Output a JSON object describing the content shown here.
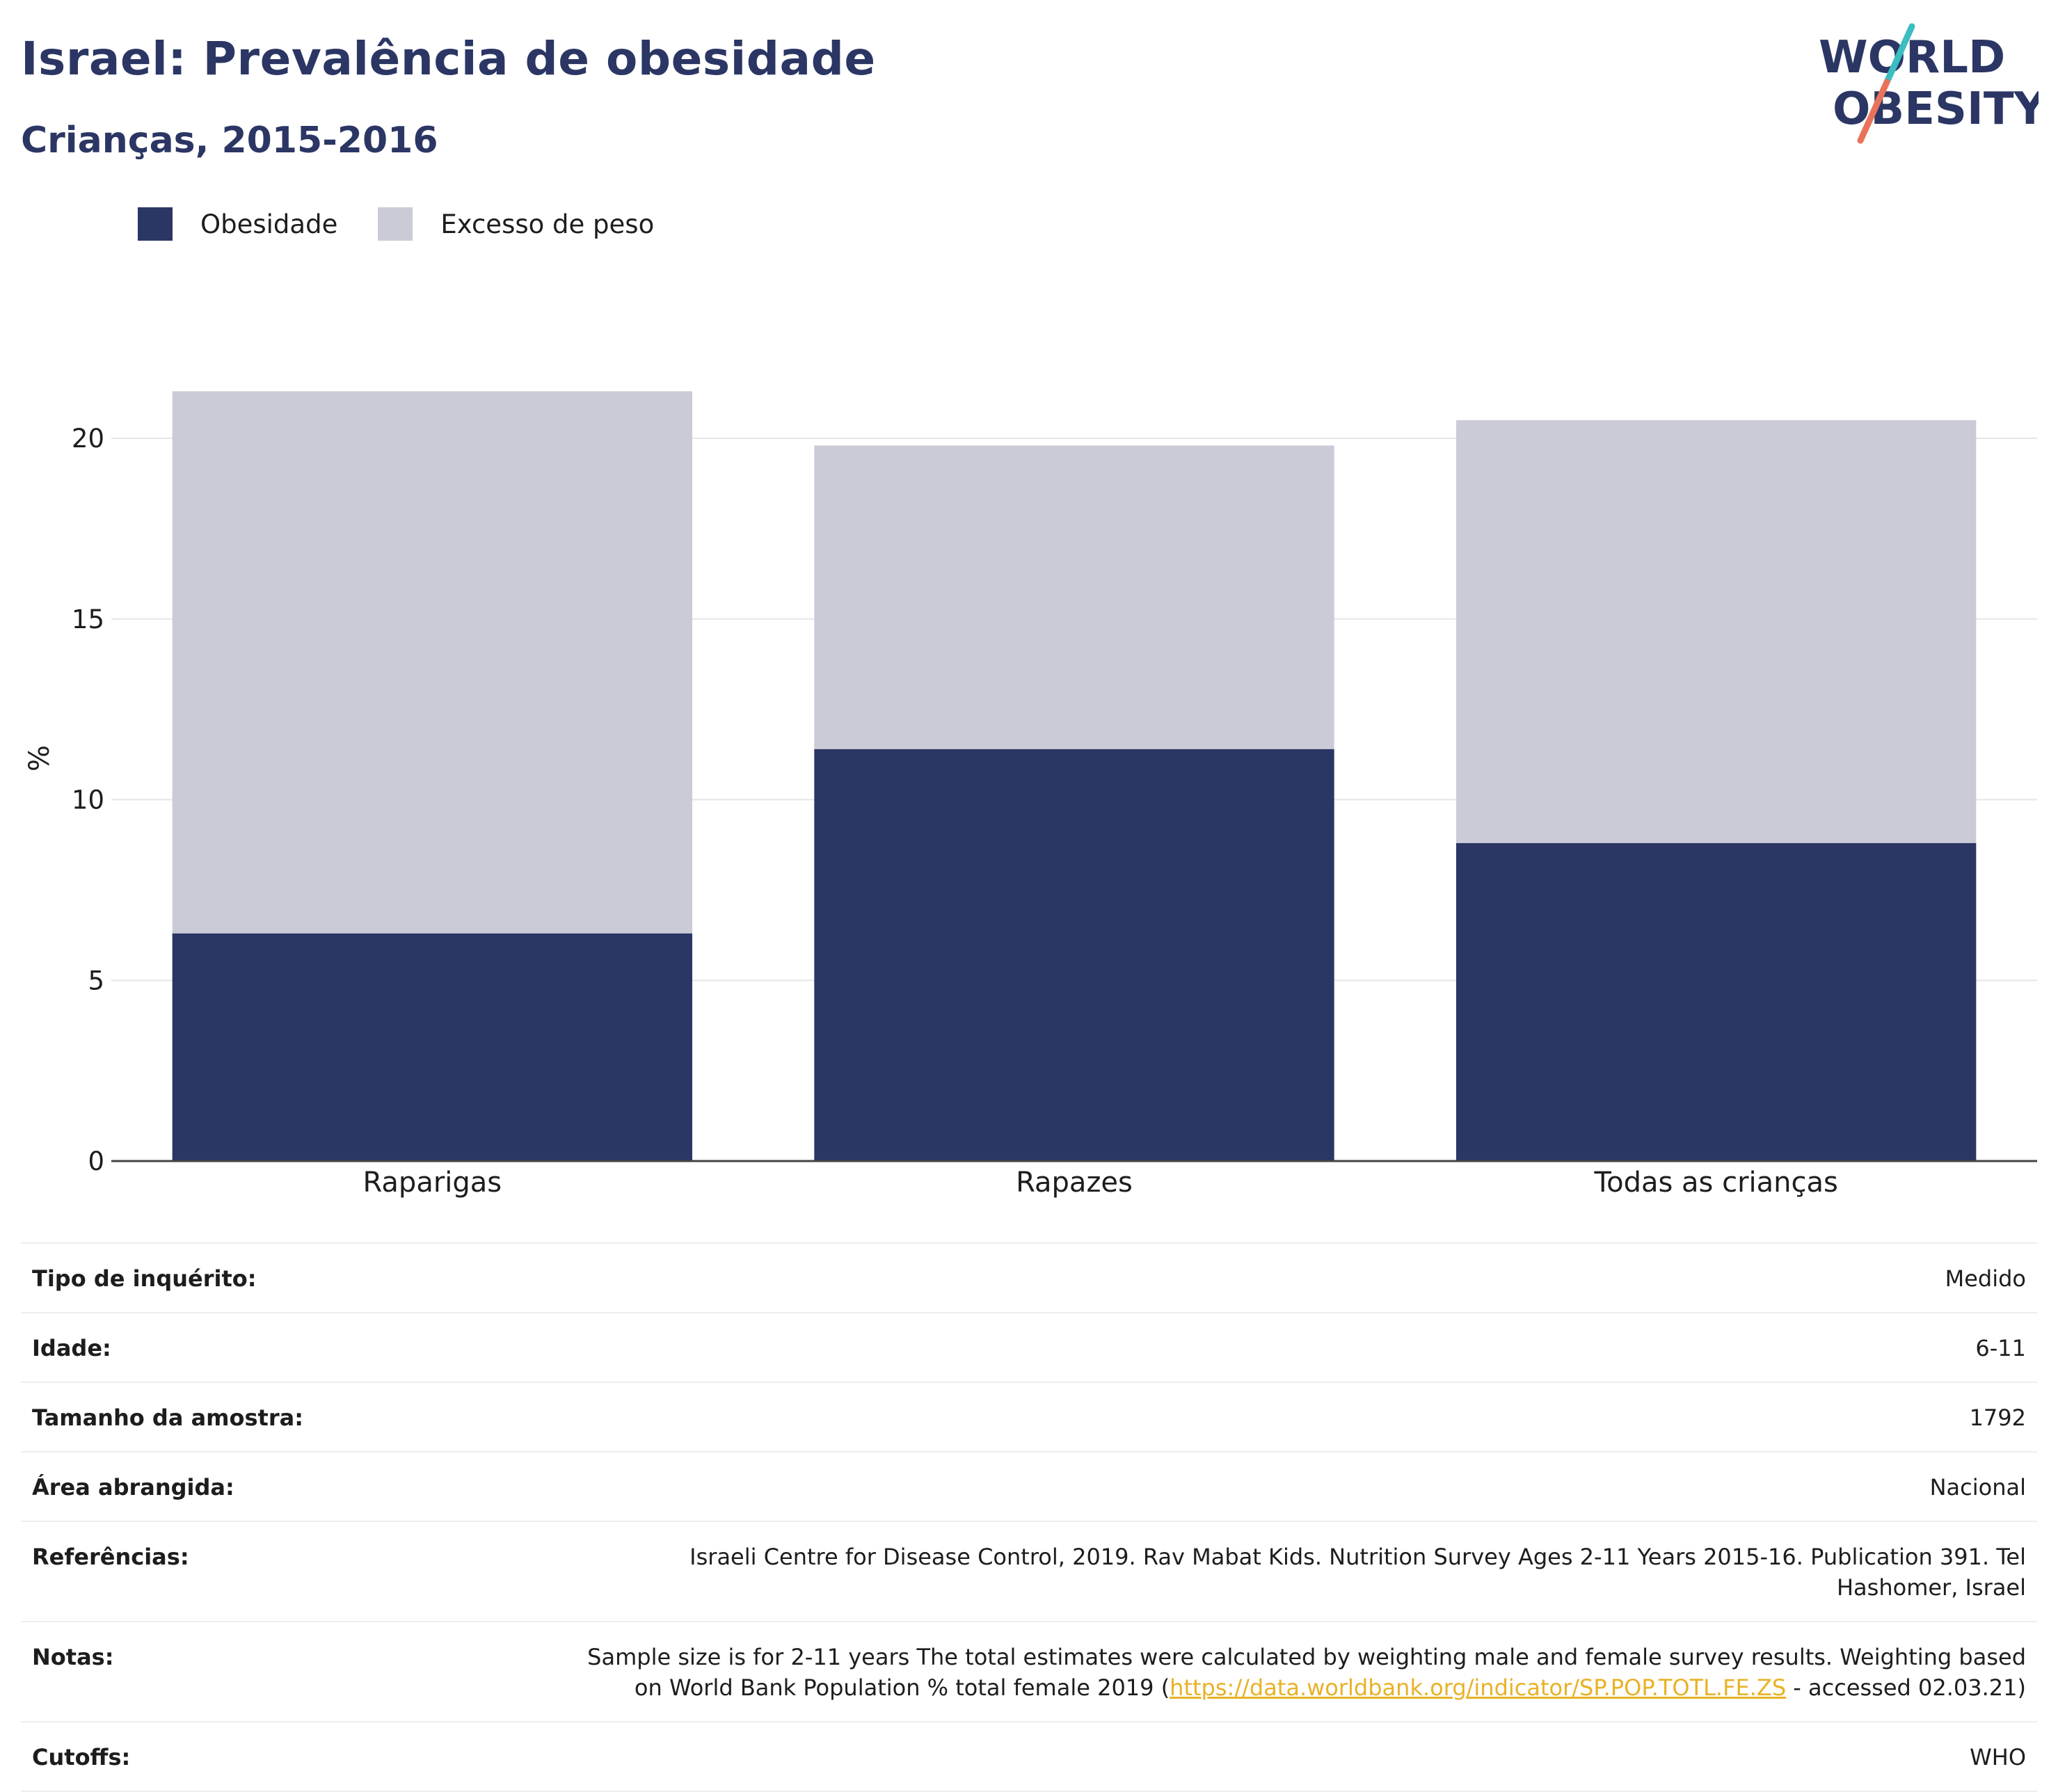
{
  "title": "Israel: Prevalência de obesidade",
  "subtitle": "Crianças, 2015-2016",
  "logo": {
    "line1": "WORLD",
    "line2": "OBESITY"
  },
  "colors": {
    "obesity": "#2b3664",
    "overweight": "#cacbd7",
    "title": "#2b3664",
    "link": "#e8b227"
  },
  "chart_data": {
    "type": "bar",
    "stacked": true,
    "categories": [
      "Raparigas",
      "Rapazes",
      "Todas as crianças"
    ],
    "series": [
      {
        "name": "Obesidade",
        "values": [
          6.3,
          11.4,
          8.8
        ]
      },
      {
        "name": "Excesso de peso",
        "values": [
          15.0,
          8.4,
          11.7
        ]
      }
    ],
    "ylabel": "%",
    "ylim": [
      0,
      22
    ],
    "yticks": [
      0,
      5,
      10,
      15,
      20
    ],
    "grid": true,
    "legend_position": "top-left"
  },
  "info": [
    {
      "label": "Tipo de inquérito:",
      "value": "Medido"
    },
    {
      "label": "Idade:",
      "value": "6-11"
    },
    {
      "label": "Tamanho da amostra:",
      "value": "1792"
    },
    {
      "label": "Área abrangida:",
      "value": "Nacional"
    },
    {
      "label": "Referências:",
      "value": "Israeli Centre for Disease Control, 2019. Rav Mabat Kids. Nutrition Survey Ages 2-11 Years 2015-16. Publication 391. Tel Hashomer, Israel"
    },
    {
      "label": "Notas:",
      "value_pre": "Sample size is for 2-11 years The total estimates were calculated by weighting male and female survey results. Weighting based on World Bank Population % total female 2019 (",
      "link": "https://data.worldbank.org/indicator/SP.POP.TOTL.FE.ZS",
      "value_post": " - accessed 02.03.21)"
    },
    {
      "label": "Cutoffs:",
      "value": "WHO"
    }
  ]
}
